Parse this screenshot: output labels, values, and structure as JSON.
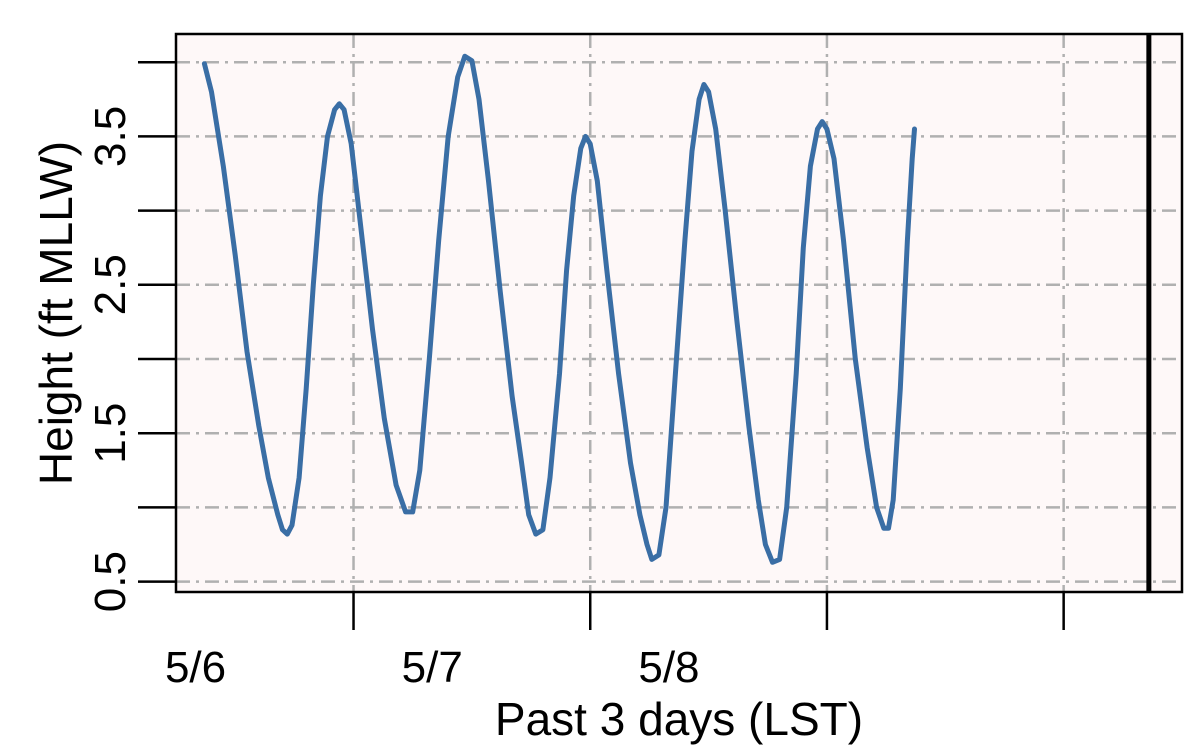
{
  "chart_data": {
    "type": "line",
    "xlabel": "Past 3 days (LST)",
    "ylabel": "Height (ft MLLW)",
    "x_unit": "days since 5/6 00:00 LST",
    "x_ticks": [
      {
        "value": 0,
        "label": "5/6"
      },
      {
        "value": 1,
        "label": "5/7"
      },
      {
        "value": 2,
        "label": "5/8"
      },
      {
        "value": 3,
        "label": ""
      }
    ],
    "y_ticks": [
      {
        "value": 0.5,
        "label": "0.5"
      },
      {
        "value": 1.0,
        "label": ""
      },
      {
        "value": 1.5,
        "label": "1.5"
      },
      {
        "value": 2.0,
        "label": ""
      },
      {
        "value": 2.5,
        "label": "2.5"
      },
      {
        "value": 3.0,
        "label": ""
      },
      {
        "value": 3.5,
        "label": "3.5"
      },
      {
        "value": 4.0,
        "label": ""
      }
    ],
    "xlim": [
      -0.75,
      3.5
    ],
    "ylim": [
      0.43,
      4.19
    ],
    "grid": true,
    "current_time_marker_x": 3.36,
    "series": [
      {
        "name": "",
        "color": "#3a6ea5",
        "points": [
          [
            -0.63,
            3.99
          ],
          [
            -0.6,
            3.8
          ],
          [
            -0.55,
            3.3
          ],
          [
            -0.5,
            2.7
          ],
          [
            -0.45,
            2.05
          ],
          [
            -0.4,
            1.55
          ],
          [
            -0.36,
            1.2
          ],
          [
            -0.32,
            0.95
          ],
          [
            -0.3,
            0.85
          ],
          [
            -0.28,
            0.82
          ],
          [
            -0.26,
            0.88
          ],
          [
            -0.23,
            1.2
          ],
          [
            -0.2,
            1.8
          ],
          [
            -0.17,
            2.5
          ],
          [
            -0.14,
            3.1
          ],
          [
            -0.11,
            3.5
          ],
          [
            -0.08,
            3.68
          ],
          [
            -0.06,
            3.72
          ],
          [
            -0.04,
            3.68
          ],
          [
            -0.01,
            3.45
          ],
          [
            0.03,
            2.9
          ],
          [
            0.08,
            2.2
          ],
          [
            0.13,
            1.6
          ],
          [
            0.18,
            1.15
          ],
          [
            0.22,
            0.97
          ],
          [
            0.25,
            0.97
          ],
          [
            0.28,
            1.25
          ],
          [
            0.32,
            2.0
          ],
          [
            0.36,
            2.8
          ],
          [
            0.4,
            3.5
          ],
          [
            0.44,
            3.9
          ],
          [
            0.47,
            4.04
          ],
          [
            0.5,
            4.01
          ],
          [
            0.53,
            3.75
          ],
          [
            0.57,
            3.2
          ],
          [
            0.62,
            2.45
          ],
          [
            0.67,
            1.75
          ],
          [
            0.71,
            1.3
          ],
          [
            0.74,
            0.95
          ],
          [
            0.77,
            0.82
          ],
          [
            0.8,
            0.85
          ],
          [
            0.83,
            1.2
          ],
          [
            0.87,
            1.9
          ],
          [
            0.9,
            2.6
          ],
          [
            0.93,
            3.1
          ],
          [
            0.96,
            3.42
          ],
          [
            0.98,
            3.5
          ],
          [
            1.0,
            3.45
          ],
          [
            1.03,
            3.2
          ],
          [
            1.07,
            2.6
          ],
          [
            1.12,
            1.9
          ],
          [
            1.17,
            1.3
          ],
          [
            1.21,
            0.95
          ],
          [
            1.24,
            0.75
          ],
          [
            1.26,
            0.65
          ],
          [
            1.29,
            0.68
          ],
          [
            1.32,
            1.0
          ],
          [
            1.36,
            1.9
          ],
          [
            1.4,
            2.8
          ],
          [
            1.43,
            3.4
          ],
          [
            1.46,
            3.75
          ],
          [
            1.48,
            3.85
          ],
          [
            1.5,
            3.8
          ],
          [
            1.53,
            3.55
          ],
          [
            1.57,
            3.0
          ],
          [
            1.62,
            2.25
          ],
          [
            1.67,
            1.55
          ],
          [
            1.71,
            1.05
          ],
          [
            1.74,
            0.75
          ],
          [
            1.77,
            0.63
          ],
          [
            1.8,
            0.65
          ],
          [
            1.83,
            1.0
          ],
          [
            1.87,
            1.9
          ],
          [
            1.9,
            2.75
          ],
          [
            1.93,
            3.3
          ],
          [
            1.96,
            3.55
          ],
          [
            1.98,
            3.6
          ],
          [
            2.0,
            3.55
          ],
          [
            2.03,
            3.35
          ],
          [
            2.07,
            2.8
          ],
          [
            2.12,
            2.0
          ],
          [
            2.17,
            1.4
          ],
          [
            2.21,
            1.0
          ],
          [
            2.24,
            0.86
          ],
          [
            2.26,
            0.86
          ],
          [
            2.28,
            1.05
          ],
          [
            2.31,
            1.8
          ],
          [
            2.34,
            2.8
          ],
          [
            2.36,
            3.35
          ],
          [
            2.37,
            3.55
          ]
        ]
      }
    ]
  }
}
